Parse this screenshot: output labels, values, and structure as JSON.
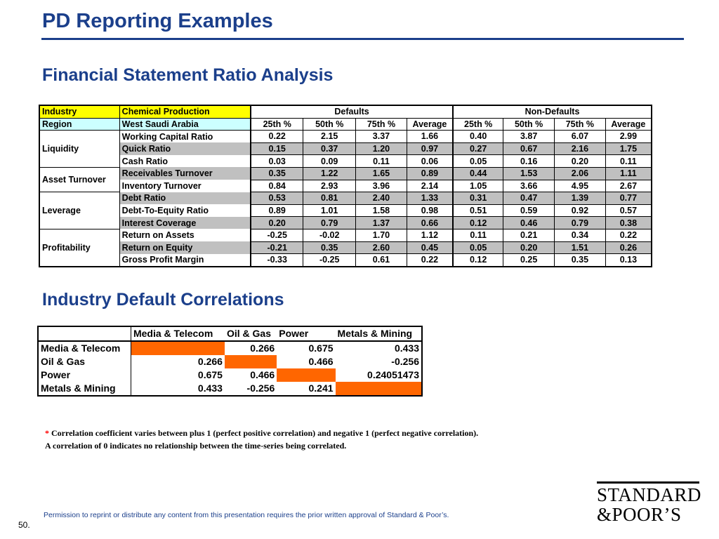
{
  "page_title": "PD Reporting Examples",
  "section1_title": "Financial Statement Ratio Analysis",
  "ratio_table": {
    "industry_label": "Industry",
    "industry_value": "Chemical Production",
    "region_label": "Region",
    "region_value": "West Saudi Arabia",
    "defaults_label": "Defaults",
    "nondefaults_label": "Non-Defaults",
    "col_headers": [
      "25th %",
      "50th %",
      "75th %",
      "Average",
      "25th %",
      "50th %",
      "75th %",
      "Average"
    ],
    "categories": [
      "Liquidity",
      "Asset Turnover",
      "Leverage",
      "Profitability"
    ],
    "rows": [
      {
        "label": "Working Capital Ratio",
        "values": [
          "0.22",
          "2.15",
          "3.37",
          "1.66",
          "0.40",
          "3.87",
          "6.07",
          "2.99"
        ]
      },
      {
        "label": "Quick Ratio",
        "values": [
          "0.15",
          "0.37",
          "1.20",
          "0.97",
          "0.27",
          "0.67",
          "2.16",
          "1.75"
        ]
      },
      {
        "label": "Cash Ratio",
        "values": [
          "0.03",
          "0.09",
          "0.11",
          "0.06",
          "0.05",
          "0.16",
          "0.20",
          "0.11"
        ]
      },
      {
        "label": "Receivables Turnover",
        "values": [
          "0.35",
          "1.22",
          "1.65",
          "0.89",
          "0.44",
          "1.53",
          "2.06",
          "1.11"
        ]
      },
      {
        "label": "Inventory Turnover",
        "values": [
          "0.84",
          "2.93",
          "3.96",
          "2.14",
          "1.05",
          "3.66",
          "4.95",
          "2.67"
        ]
      },
      {
        "label": "Debt Ratio",
        "values": [
          "0.53",
          "0.81",
          "2.40",
          "1.33",
          "0.31",
          "0.47",
          "1.39",
          "0.77"
        ]
      },
      {
        "label": "Debt-To-Equity Ratio",
        "values": [
          "0.89",
          "1.01",
          "1.58",
          "0.98",
          "0.51",
          "0.59",
          "0.92",
          "0.57"
        ]
      },
      {
        "label": "Interest Coverage",
        "values": [
          "0.20",
          "0.79",
          "1.37",
          "0.66",
          "0.12",
          "0.46",
          "0.79",
          "0.38"
        ]
      },
      {
        "label": "Return on Assets",
        "values": [
          "-0.25",
          "-0.02",
          "1.70",
          "1.12",
          "0.11",
          "0.21",
          "0.34",
          "0.22"
        ]
      },
      {
        "label": "Return on Equity",
        "values": [
          "-0.21",
          "0.35",
          "2.60",
          "0.45",
          "0.05",
          "0.20",
          "1.51",
          "0.26"
        ]
      },
      {
        "label": "Gross Profit Margin",
        "values": [
          "-0.33",
          "-0.25",
          "0.61",
          "0.22",
          "0.12",
          "0.25",
          "0.35",
          "0.13"
        ]
      }
    ]
  },
  "section2_title": "Industry Default Correlations",
  "corr_table": {
    "col_headers": [
      "Media & Telecom",
      "Oil & Gas",
      "Power",
      "Metals & Mining"
    ],
    "rows": [
      {
        "label": "Media & Telecom",
        "values": [
          "",
          "0.266",
          "0.675",
          "0.433"
        ]
      },
      {
        "label": "Oil & Gas",
        "values": [
          "0.266",
          "",
          "0.466",
          "-0.256"
        ]
      },
      {
        "label": "Power",
        "values": [
          "0.675",
          "0.466",
          "",
          "0.24051473"
        ]
      },
      {
        "label": "Metals & Mining",
        "values": [
          "0.433",
          "-0.256",
          "0.241",
          ""
        ]
      }
    ]
  },
  "note": {
    "star": "*",
    "line1": "Correlation coefficient varies between plus 1 (perfect positive correlation) and negative 1 (perfect negative correlation).",
    "line2": "A correlation of 0 indicates no relationship between the time-series being correlated."
  },
  "permission_text": "Permission to reprint or distribute any content from this presentation requires the prior written approval of Standard & Poor’s.",
  "page_number": "50.",
  "logo": {
    "line1": "STANDARD",
    "line2": "&POOR’S"
  },
  "colors": {
    "title_blue": "#1b3f8b",
    "highlight_yellow": "#ffff00",
    "highlight_cyan": "#ccffff",
    "row_grey": "#c0c0c0",
    "diag_orange": "#ff6600"
  }
}
